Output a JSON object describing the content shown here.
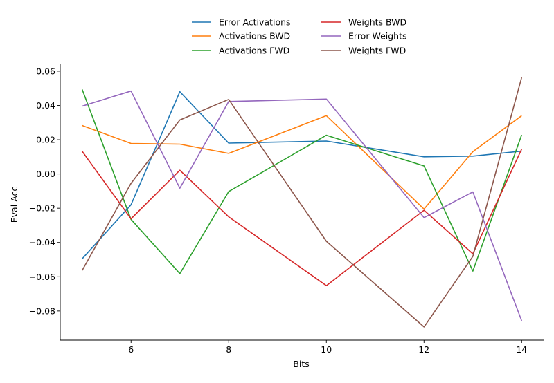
{
  "chart_data": {
    "type": "line",
    "title": "",
    "xlabel": "Bits",
    "ylabel": "Eval Acc",
    "xlim": [
      4.55,
      14.45
    ],
    "ylim": [
      -0.097,
      0.064
    ],
    "x": [
      5,
      6,
      7,
      8,
      10,
      12,
      13,
      14
    ],
    "xticks": [
      6,
      8,
      10,
      12,
      14
    ],
    "xtick_labels": [
      "6",
      "8",
      "10",
      "12",
      "14"
    ],
    "yticks": [
      -0.08,
      -0.06,
      -0.04,
      -0.02,
      0.0,
      0.02,
      0.04,
      0.06
    ],
    "ytick_labels": [
      "−0.08",
      "−0.06",
      "−0.04",
      "−0.02",
      "0.00",
      "0.02",
      "0.04",
      "0.06"
    ],
    "grid": false,
    "legend_position": "top-center",
    "series": [
      {
        "name": "Error Activations",
        "color": "#1f77b4",
        "values": [
          -0.0495,
          -0.018,
          0.048,
          0.018,
          0.0192,
          0.01,
          0.0104,
          0.0133
        ]
      },
      {
        "name": "Activations BWD",
        "color": "#ff7f0e",
        "values": [
          0.0283,
          0.0178,
          0.0174,
          0.012,
          0.034,
          -0.0205,
          0.013,
          0.034
        ]
      },
      {
        "name": "Activations FWD",
        "color": "#2ca02c",
        "values": [
          0.0493,
          -0.0265,
          -0.0582,
          -0.0103,
          0.0226,
          0.0047,
          -0.0567,
          0.0228
        ]
      },
      {
        "name": "Weights BWD",
        "color": "#d62728",
        "values": [
          0.0132,
          -0.0262,
          0.0022,
          -0.025,
          -0.0652,
          -0.0212,
          -0.0466,
          0.0145
        ]
      },
      {
        "name": "Error Weights",
        "color": "#9467bd",
        "values": [
          0.0396,
          0.0484,
          -0.0083,
          0.0423,
          0.0437,
          -0.0255,
          -0.0105,
          -0.0857
        ]
      },
      {
        "name": "Weights FWD",
        "color": "#8c564b",
        "values": [
          -0.0563,
          -0.0055,
          0.0315,
          0.0435,
          -0.0393,
          -0.0893,
          -0.0481,
          0.0563
        ]
      }
    ]
  }
}
